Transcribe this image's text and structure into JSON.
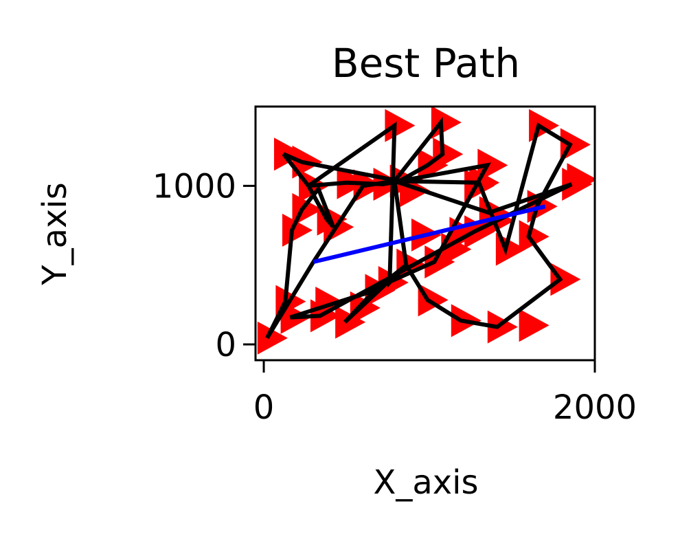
{
  "chart_data": {
    "type": "scatter",
    "title": "Best Path",
    "xlabel": "X_axis",
    "ylabel": "Y_axis",
    "xlim": [
      -50,
      2000
    ],
    "ylim": [
      -100,
      1500
    ],
    "xticks": [
      {
        "value": 0,
        "label": "0"
      },
      {
        "value": 2000,
        "label": "2000"
      }
    ],
    "yticks": [
      {
        "value": 0,
        "label": "0"
      },
      {
        "value": 1000,
        "label": "1000"
      }
    ],
    "grid": false,
    "legend": "none",
    "colors": {
      "points": "#ff0000",
      "path": "#000000",
      "closing": "#0000ff"
    },
    "series": [
      {
        "kind": "points",
        "marker": "triangle-right",
        "color": "#ff0000",
        "points": [
          [
            20,
            40
          ],
          [
            160,
            170
          ],
          [
            130,
            270
          ],
          [
            170,
            720
          ],
          [
            230,
            850
          ],
          [
            270,
            1000
          ],
          [
            230,
            1150
          ],
          [
            120,
            1200
          ],
          [
            420,
            740
          ],
          [
            380,
            790
          ],
          [
            500,
            1020
          ],
          [
            720,
            1010
          ],
          [
            820,
            1030
          ],
          [
            790,
            1380
          ],
          [
            1070,
            1400
          ],
          [
            1080,
            1200
          ],
          [
            990,
            1130
          ],
          [
            1300,
            1020
          ],
          [
            1270,
            1000
          ],
          [
            1360,
            830
          ],
          [
            1390,
            780
          ],
          [
            1660,
            1380
          ],
          [
            1850,
            1260
          ],
          [
            1650,
            870
          ],
          [
            1790,
            410
          ],
          [
            1860,
            1010
          ],
          [
            1890,
            1040
          ],
          [
            1600,
            680
          ],
          [
            1460,
            600
          ],
          [
            1130,
            600
          ],
          [
            1270,
            710
          ],
          [
            1180,
            700
          ],
          [
            1030,
            520
          ],
          [
            860,
            500
          ],
          [
            750,
            390
          ],
          [
            670,
            340
          ],
          [
            490,
            140
          ],
          [
            370,
            260
          ],
          [
            340,
            180
          ],
          [
            990,
            280
          ],
          [
            1190,
            150
          ],
          [
            1410,
            110
          ],
          [
            1600,
            120
          ],
          [
            1350,
            1130
          ],
          [
            600,
            1000
          ],
          [
            880,
            970
          ],
          [
            580,
            230
          ],
          [
            950,
            690
          ]
        ]
      },
      {
        "kind": "path",
        "color": "#000000",
        "points": [
          [
            300,
            520
          ],
          [
            20,
            40
          ],
          [
            130,
            270
          ],
          [
            170,
            720
          ],
          [
            230,
            850
          ],
          [
            330,
            980
          ],
          [
            420,
            740
          ],
          [
            380,
            790
          ],
          [
            270,
            1000
          ],
          [
            500,
            1020
          ],
          [
            720,
            1010
          ],
          [
            820,
            1030
          ],
          [
            230,
            1150
          ],
          [
            120,
            1200
          ],
          [
            270,
            1000
          ],
          [
            790,
            1380
          ],
          [
            760,
            390
          ],
          [
            860,
            500
          ],
          [
            790,
            1030
          ],
          [
            1070,
            1400
          ],
          [
            1080,
            1200
          ],
          [
            990,
            1130
          ],
          [
            820,
            1030
          ],
          [
            1350,
            1130
          ],
          [
            1030,
            520
          ],
          [
            750,
            390
          ],
          [
            670,
            340
          ],
          [
            490,
            140
          ],
          [
            860,
            500
          ],
          [
            790,
            1030
          ],
          [
            1300,
            1020
          ],
          [
            1460,
            600
          ],
          [
            1660,
            1380
          ],
          [
            1850,
            1260
          ],
          [
            1650,
            870
          ],
          [
            1600,
            680
          ],
          [
            1790,
            410
          ],
          [
            1410,
            110
          ],
          [
            1190,
            150
          ],
          [
            990,
            280
          ],
          [
            860,
            500
          ],
          [
            670,
            340
          ],
          [
            160,
            170
          ],
          [
            340,
            180
          ],
          [
            1270,
            710
          ],
          [
            1860,
            1010
          ],
          [
            1360,
            830
          ],
          [
            790,
            1030
          ],
          [
            600,
            1000
          ],
          [
            300,
            520
          ]
        ]
      },
      {
        "kind": "closing-segment",
        "color": "#0000ff",
        "points": [
          [
            300,
            520
          ],
          [
            1700,
            870
          ]
        ]
      }
    ]
  }
}
